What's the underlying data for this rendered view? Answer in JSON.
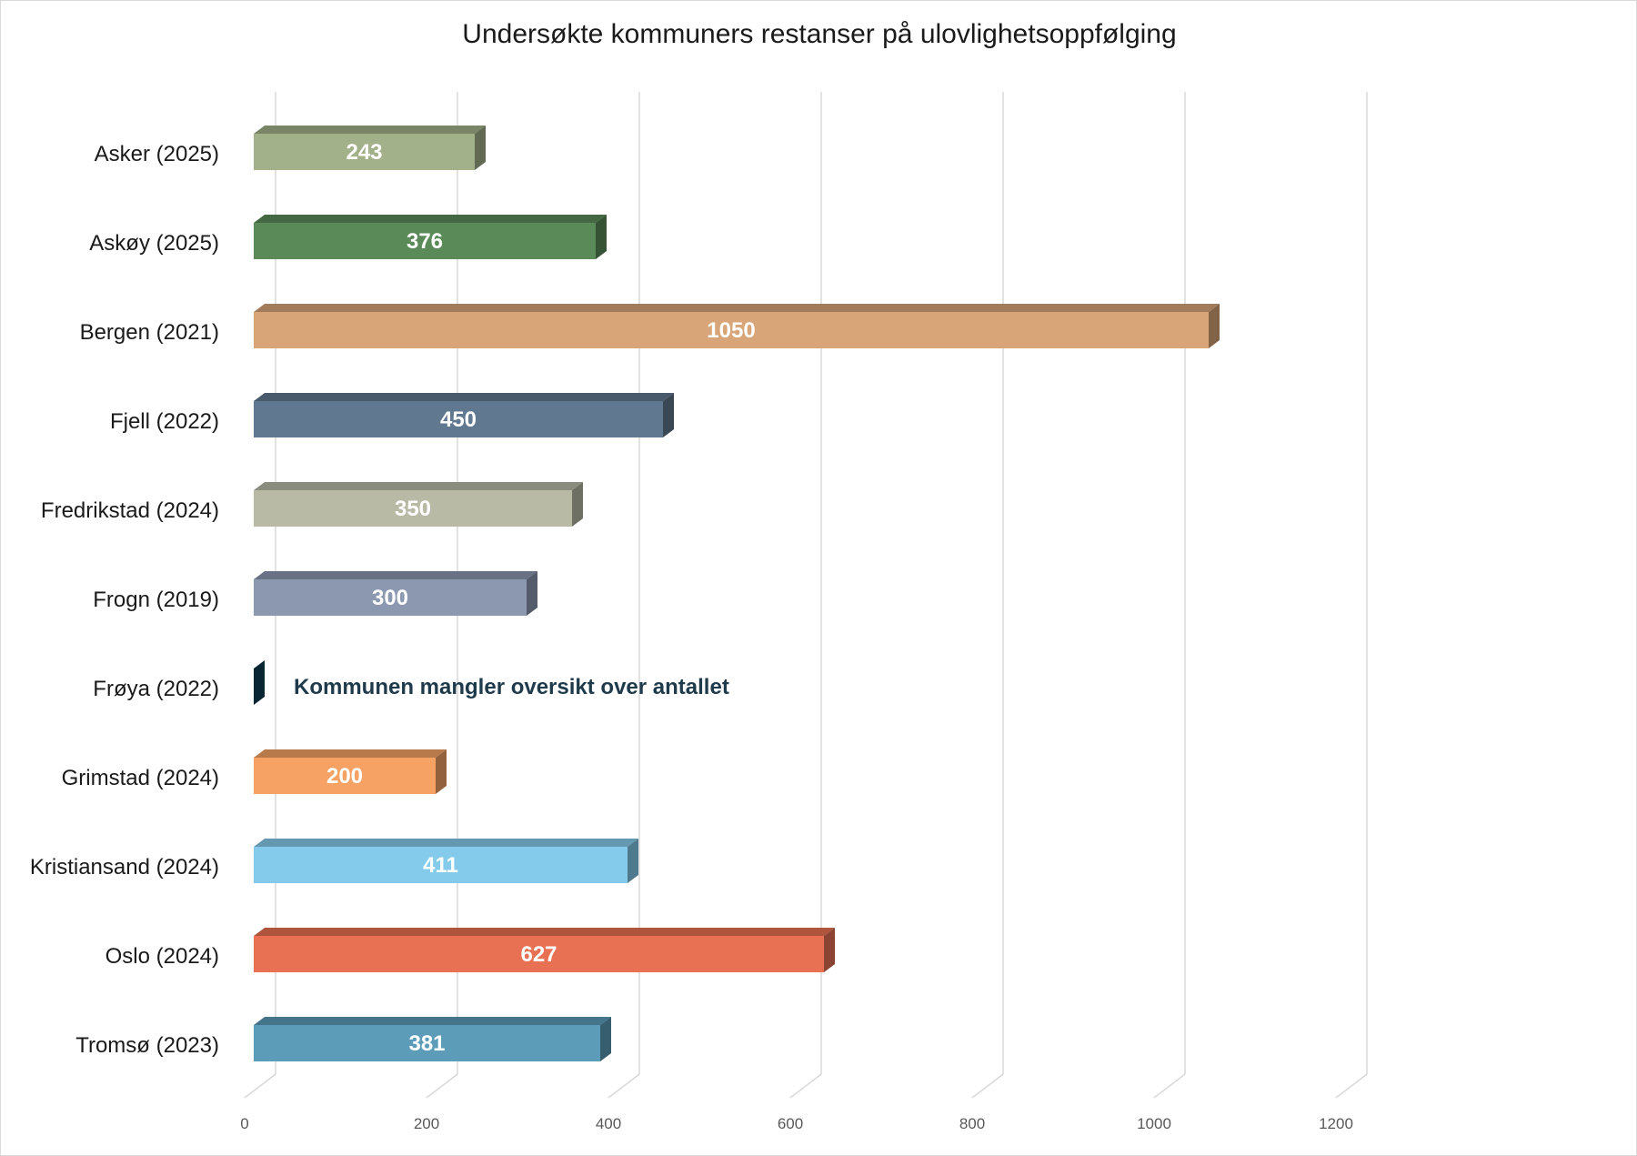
{
  "chart_data": {
    "type": "bar",
    "orientation": "horizontal",
    "three_d": true,
    "title": "Undersøkte kommuners restanser på ulovlighetsoppfølging",
    "xlabel": "",
    "ylabel": "",
    "xlim": [
      0,
      1200
    ],
    "x_ticks": [
      "0",
      "200",
      "400",
      "600",
      "800",
      "1000",
      "1200"
    ],
    "grid": true,
    "legend": "none",
    "categories": [
      "Asker (2025)",
      "Askøy (2025)",
      "Bergen (2021)",
      "Fjell (2022)",
      "Fredrikstad (2024)",
      "Frogn (2019)",
      "Frøya (2022)",
      "Grimstad (2024)",
      "Kristiansand (2024)",
      "Oslo (2024)",
      "Tromsø (2023)"
    ],
    "values": [
      243,
      376,
      1050,
      450,
      350,
      300,
      0,
      200,
      411,
      627,
      381
    ],
    "value_labels": [
      "243",
      "376",
      "1050",
      "450",
      "350",
      "300",
      "Kommunen mangler oversikt over antallet",
      "200",
      "411",
      "627",
      "381"
    ],
    "colors": [
      "#a3b18a",
      "#5a8a58",
      "#d8a578",
      "#607890",
      "#b8baa6",
      "#8c98b0",
      "#0d3d55",
      "#f5a264",
      "#84cbeb",
      "#e97153",
      "#5c9cb8"
    ]
  }
}
